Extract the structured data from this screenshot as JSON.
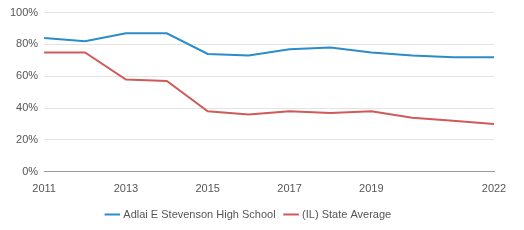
{
  "chart_data": {
    "type": "line",
    "categories": [
      "2011",
      null,
      "2013",
      null,
      "2015",
      null,
      "2017",
      null,
      "2019",
      null,
      null,
      "2022"
    ],
    "series": [
      {
        "name": "Adlai E Stevenson High School",
        "color": "#2b8ccb",
        "values": [
          84,
          82,
          87,
          87,
          74,
          73,
          77,
          78,
          75,
          73,
          72,
          72
        ]
      },
      {
        "name": "(IL) State Average",
        "color": "#d05a5a",
        "values": [
          75,
          75,
          58,
          57,
          38,
          36,
          38,
          37,
          38,
          34,
          32,
          30
        ]
      }
    ],
    "ylim": [
      0,
      100
    ],
    "yticks": [
      {
        "value": 0,
        "label": "0%"
      },
      {
        "value": 20,
        "label": "20%"
      },
      {
        "value": 40,
        "label": "40%"
      },
      {
        "value": 60,
        "label": "60%"
      },
      {
        "value": 80,
        "label": "80%"
      },
      {
        "value": 100,
        "label": "100%"
      }
    ],
    "grid": true,
    "legend": "bottom",
    "marker": "none"
  }
}
